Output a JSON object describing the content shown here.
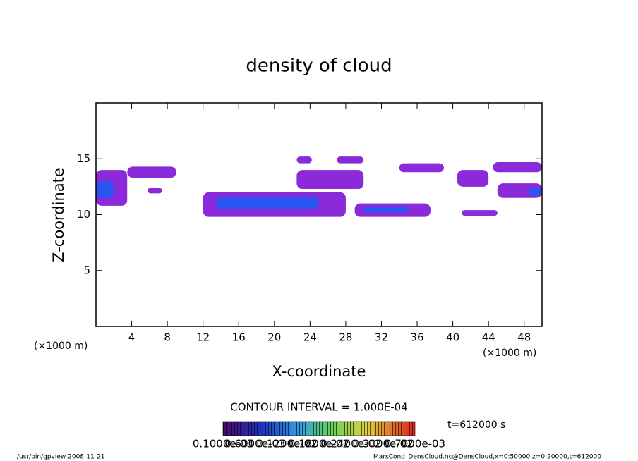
{
  "chart_data": {
    "type": "contour",
    "title": "density of cloud",
    "x_label": "X-coordinate",
    "y_label": "Z-coordinate",
    "x_unit": "(×1000 m)",
    "y_unit": "(×1000 m)",
    "xlim": [
      0,
      50
    ],
    "ylim": [
      0,
      20
    ],
    "xticks": [
      4,
      8,
      12,
      16,
      20,
      24,
      28,
      32,
      36,
      40,
      44,
      48
    ],
    "yticks": [
      5,
      10,
      15
    ],
    "regions": [
      {
        "x": [
          0,
          3.5
        ],
        "z": [
          10.8,
          14
        ],
        "color": "#8a2ad8"
      },
      {
        "x": [
          0,
          2
        ],
        "z": [
          11.5,
          13
        ],
        "color": "#2a55f0"
      },
      {
        "x": [
          3.5,
          9
        ],
        "z": [
          13.3,
          14.3
        ],
        "color": "#8a2ad8"
      },
      {
        "x": [
          5.8,
          7.4
        ],
        "z": [
          11.9,
          12.4
        ],
        "color": "#8a2ad8"
      },
      {
        "x": [
          12,
          28
        ],
        "z": [
          9.8,
          12
        ],
        "color": "#8a2ad8"
      },
      {
        "x": [
          13.5,
          25
        ],
        "z": [
          10.5,
          11.6
        ],
        "color": "#2a55f0"
      },
      {
        "x": [
          29,
          37.5
        ],
        "z": [
          9.8,
          11
        ],
        "color": "#8a2ad8"
      },
      {
        "x": [
          30,
          35
        ],
        "z": [
          10.2,
          10.7
        ],
        "color": "#2a55f0"
      },
      {
        "x": [
          22.5,
          30
        ],
        "z": [
          12.3,
          14
        ],
        "color": "#8a2ad8"
      },
      {
        "x": [
          22.5,
          24.2
        ],
        "z": [
          14.6,
          15.2
        ],
        "color": "#8a2ad8"
      },
      {
        "x": [
          27,
          30
        ],
        "z": [
          14.6,
          15.2
        ],
        "color": "#8a2ad8"
      },
      {
        "x": [
          34,
          39
        ],
        "z": [
          13.8,
          14.6
        ],
        "color": "#8a2ad8"
      },
      {
        "x": [
          40.5,
          44
        ],
        "z": [
          12.5,
          14
        ],
        "color": "#8a2ad8"
      },
      {
        "x": [
          44.5,
          50
        ],
        "z": [
          13.8,
          14.7
        ],
        "color": "#8a2ad8"
      },
      {
        "x": [
          45,
          50
        ],
        "z": [
          11.5,
          12.8
        ],
        "color": "#8a2ad8"
      },
      {
        "x": [
          48.5,
          50
        ],
        "z": [
          11.7,
          12.4
        ],
        "color": "#2a55f0"
      },
      {
        "x": [
          41,
          45
        ],
        "z": [
          9.9,
          10.4
        ],
        "color": "#8a2ad8"
      }
    ],
    "contour_interval": "CONTOUR INTERVAL = 1.000E-04",
    "time_label": "t=612000 s",
    "colorbar_labels": [
      "0.1000e-03",
      "0.6000e-03",
      "0.1200e-02",
      "0.1800e-02",
      "0.2400e-02",
      "0.3000e-02",
      "0.7000e-03"
    ],
    "footer_left": "/usr/bin/gpview  2008-11-21",
    "footer_right": "MarsCond_DensCloud.nc@DensCloud,x=0:50000,z=0:20000,t=612000"
  }
}
